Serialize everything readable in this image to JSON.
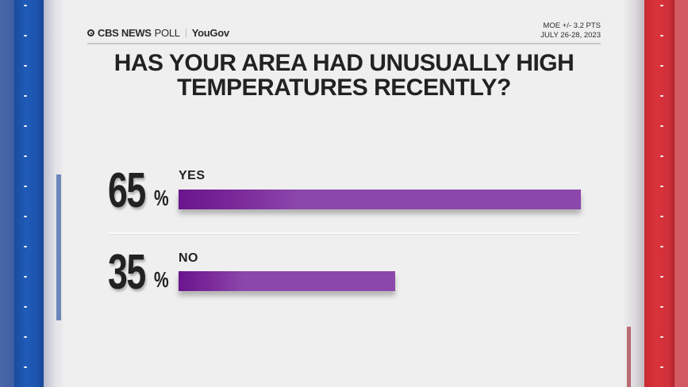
{
  "header": {
    "brand_primary": "CBS NEWS",
    "brand_secondary": "POLL",
    "partner": "YouGov",
    "moe": "MOE +/- 3.2 PTS",
    "dates": "JULY 26-28, 2023"
  },
  "title": "HAS YOUR AREA HAD UNUSUALLY HIGH TEMPERATURES RECENTLY?",
  "responses": [
    {
      "label": "YES",
      "value": "65",
      "pct_sign": "%"
    },
    {
      "label": "NO",
      "value": "35",
      "pct_sign": "%"
    }
  ],
  "colors": {
    "bar_dark": "#6a158e",
    "bar_light": "#8b47ab",
    "left_rail": "#1f5bb8",
    "right_rail": "#d9323b",
    "background": "#efefef"
  },
  "icons": {
    "brand": "cbs-eye-icon"
  },
  "chart_data": {
    "type": "bar",
    "orientation": "horizontal",
    "title": "HAS YOUR AREA HAD UNUSUALLY HIGH TEMPERATURES RECENTLY?",
    "categories": [
      "YES",
      "NO"
    ],
    "values": [
      65,
      35
    ],
    "units": "%",
    "xlabel": "",
    "ylabel": "",
    "xlim": [
      0,
      100
    ],
    "grid": false,
    "legend": "none",
    "source": "CBS NEWS POLL | YouGov",
    "annotations": [
      "MOE +/- 3.2 PTS",
      "JULY 26-28, 2023"
    ]
  }
}
